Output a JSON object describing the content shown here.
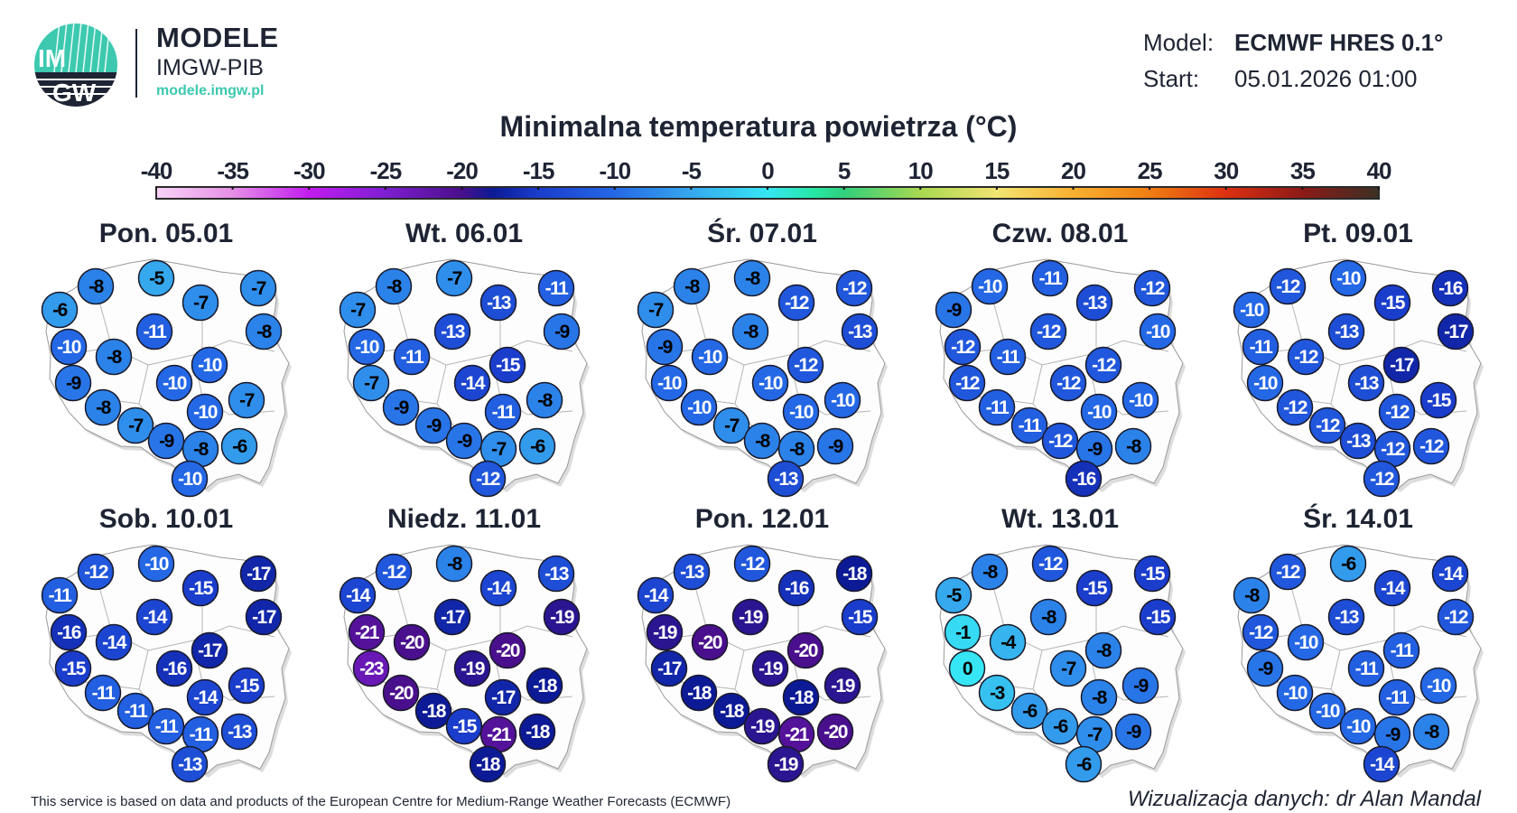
{
  "header": {
    "logo_text_top": "IM",
    "logo_text_bottom": "GW",
    "brand_title": "MODELE",
    "brand_subtitle": "IMGW-PIB",
    "brand_url": "modele.imgw.pl",
    "model_label": "Model:",
    "model_value": "ECMWF HRES 0.1°",
    "start_label": "Start:",
    "start_value": "05.01.2026 01:00",
    "accent_color": "#3cc9b0"
  },
  "title": "Minimalna temperatura powietrza (°C)",
  "colorbar": {
    "ticks": [
      "-40",
      "-35",
      "-30",
      "-25",
      "-20",
      "-15",
      "-10",
      "-5",
      "0",
      "5",
      "10",
      "15",
      "20",
      "25",
      "30",
      "35",
      "40"
    ],
    "range": [
      -40,
      40
    ],
    "stops": [
      {
        "v": -40,
        "c": "#f8d4f6"
      },
      {
        "v": -35,
        "c": "#e68fe6"
      },
      {
        "v": -30,
        "c": "#c21cf0"
      },
      {
        "v": -25,
        "c": "#7e1ed2"
      },
      {
        "v": -20,
        "c": "#4a0f8c"
      },
      {
        "v": -18,
        "c": "#0c1a96"
      },
      {
        "v": -15,
        "c": "#1a3dcc"
      },
      {
        "v": -10,
        "c": "#2468e6"
      },
      {
        "v": -5,
        "c": "#36a8ee"
      },
      {
        "v": 0,
        "c": "#36e6f4"
      },
      {
        "v": 3,
        "c": "#26e8a6"
      },
      {
        "v": 5,
        "c": "#30d07c"
      },
      {
        "v": 10,
        "c": "#a8d850"
      },
      {
        "v": 15,
        "c": "#f2e472"
      },
      {
        "v": 20,
        "c": "#f8b030"
      },
      {
        "v": 25,
        "c": "#f07e12"
      },
      {
        "v": 30,
        "c": "#de3010"
      },
      {
        "v": 35,
        "c": "#8c1a18"
      },
      {
        "v": 40,
        "c": "#3c3024"
      }
    ]
  },
  "panels": [
    {
      "label": "Pon. 05.01",
      "values": [
        -6,
        -8,
        -5,
        -7,
        -7,
        -8,
        -11,
        -10,
        -8,
        -10,
        -10,
        -9,
        -8,
        -10,
        -7,
        -7,
        -9,
        -8,
        -6,
        -10
      ]
    },
    {
      "label": "Wt. 06.01",
      "values": [
        -7,
        -8,
        -7,
        -13,
        -11,
        -9,
        -13,
        -10,
        -11,
        -15,
        -14,
        -7,
        -9,
        -11,
        -8,
        -9,
        -9,
        -7,
        -6,
        -12
      ]
    },
    {
      "label": "Śr. 07.01",
      "values": [
        -7,
        -8,
        -8,
        -12,
        -12,
        -13,
        -8,
        -9,
        -10,
        -12,
        -10,
        -10,
        -10,
        -10,
        -10,
        -7,
        -8,
        -8,
        -9,
        -13
      ]
    },
    {
      "label": "Czw. 08.01",
      "values": [
        -9,
        -10,
        -11,
        -13,
        -12,
        -10,
        -12,
        -12,
        -11,
        -12,
        -12,
        -12,
        -11,
        -10,
        -10,
        -11,
        -12,
        -9,
        -8,
        -16
      ]
    },
    {
      "label": "Pt. 09.01",
      "values": [
        -10,
        -12,
        -10,
        -15,
        -16,
        -17,
        -13,
        -11,
        -12,
        -17,
        -13,
        -10,
        -12,
        -12,
        -15,
        -12,
        -13,
        -12,
        -12,
        -12
      ]
    },
    {
      "label": "Sob. 10.01",
      "values": [
        -11,
        -12,
        -10,
        -15,
        -17,
        -17,
        -14,
        -16,
        -14,
        -17,
        -16,
        -15,
        -11,
        -14,
        -15,
        -11,
        -11,
        -11,
        -13,
        -13
      ]
    },
    {
      "label": "Niedz. 11.01",
      "values": [
        -14,
        -12,
        -8,
        -14,
        -13,
        -19,
        -17,
        -21,
        -20,
        -20,
        -19,
        -23,
        -20,
        -17,
        -18,
        -18,
        -15,
        -21,
        -18,
        -18
      ]
    },
    {
      "label": "Pon. 12.01",
      "values": [
        -14,
        -13,
        -12,
        -16,
        -18,
        -15,
        -19,
        -19,
        -20,
        -20,
        -19,
        -17,
        -18,
        -18,
        -19,
        -18,
        -19,
        -21,
        -20,
        -19
      ]
    },
    {
      "label": "Wt. 13.01",
      "values": [
        -5,
        -8,
        -12,
        -15,
        -15,
        -15,
        -8,
        -1,
        -4,
        -8,
        -7,
        0,
        -3,
        -8,
        -9,
        -6,
        -6,
        -7,
        -9,
        -6
      ]
    },
    {
      "label": "Śr. 14.01",
      "values": [
        -8,
        -12,
        -6,
        -14,
        -14,
        -12,
        -13,
        -12,
        -10,
        -11,
        -11,
        -9,
        -10,
        -11,
        -10,
        -10,
        -10,
        -9,
        -8,
        -14
      ]
    }
  ],
  "footer": {
    "source": "This service is based on data and products of the European Centre for Medium-Range Weather Forecasts (ECMWF)",
    "credit": "Wizualizacja danych: dr Alan Mandal"
  }
}
